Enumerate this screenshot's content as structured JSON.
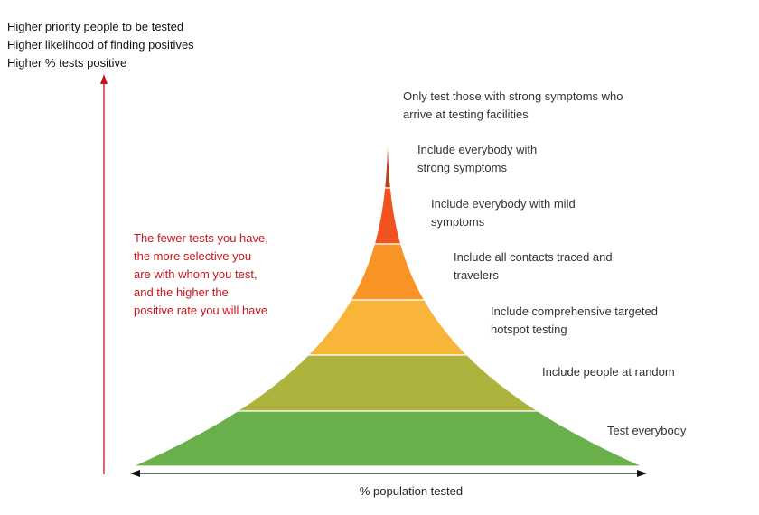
{
  "y_axis_lines": [
    "Higher priority people to be tested",
    "Higher likelihood of finding positives",
    "Higher % tests positive"
  ],
  "callout_lines": [
    "The fewer tests you have,",
    "the more selective you",
    "are with whom you test,",
    "and the higher the",
    "positive rate you will have"
  ],
  "x_axis_label": "% population tested",
  "tiers": [
    {
      "lines": [
        "Only test those with strong symptoms who",
        "arrive at testing facilities"
      ],
      "color": "#c0171c"
    },
    {
      "lines": [
        "Include everybody with",
        "strong symptoms"
      ],
      "color": "#b24518"
    },
    {
      "lines": [
        "Include everybody with mild",
        "symptoms"
      ],
      "color": "#f2521d"
    },
    {
      "lines": [
        "Include all contacts traced and",
        "travelers"
      ],
      "color": "#f89424"
    },
    {
      "lines": [
        "Include comprehensive targeted",
        "hotspot testing"
      ],
      "color": "#f9b43a"
    },
    {
      "lines": [
        "Include people at random"
      ],
      "color": "#adb33c"
    },
    {
      "lines": [
        "Test everybody"
      ],
      "color": "#6ab04a"
    }
  ],
  "colors": {
    "axis_arrow": "#c0171c",
    "callout_text": "#c8161d"
  }
}
